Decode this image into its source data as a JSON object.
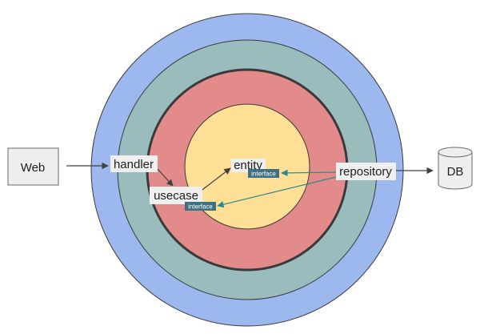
{
  "diagram": {
    "labels": {
      "web": "Web",
      "db": "DB",
      "handler": "handler",
      "usecase": "usecase",
      "entity": "entity",
      "repository": "repository",
      "entity_interface": "interface",
      "usecase_interface": "interface"
    },
    "colors": {
      "outer_ring": "#9db8ef",
      "second_ring": "#9bbcbc",
      "third_ring": "#e38b8b",
      "core": "#ffde95",
      "ring_border": "#3a3a3a",
      "label_bg": "#efefef",
      "interface_tag": "#3f7081",
      "arrow_dark": "#404040",
      "arrow_teal": "#2a8a8a"
    }
  }
}
